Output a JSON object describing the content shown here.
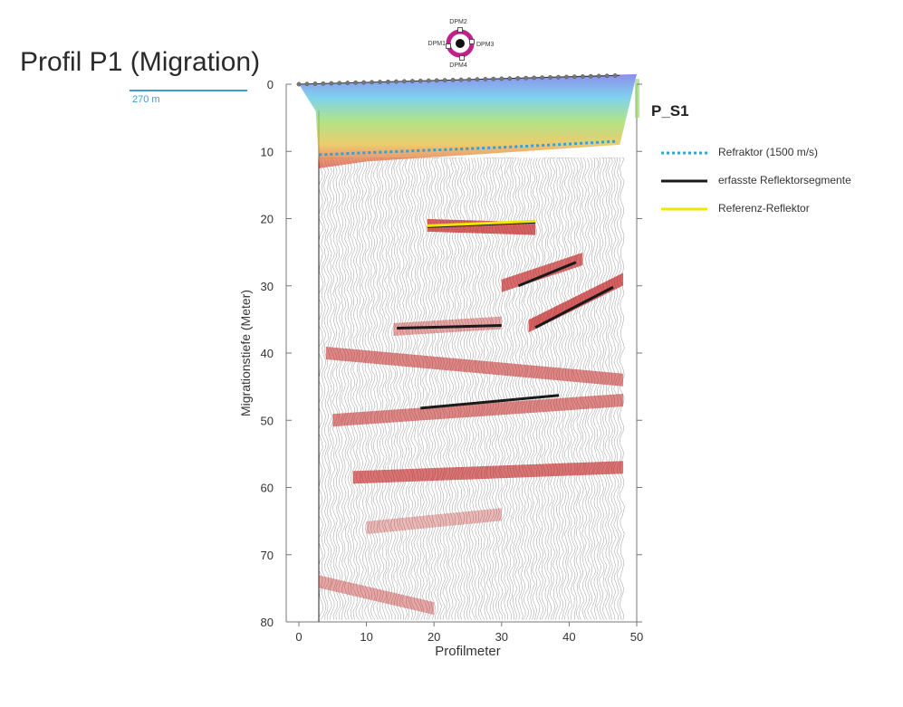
{
  "title": "Profil P1 (Migration)",
  "scale_label": "270 m",
  "profile_name": "P_S1",
  "probe": {
    "labels": [
      "DPM2",
      "DPM1",
      "DPM3",
      "DPM4"
    ]
  },
  "colors": {
    "axis": "#555555",
    "refraktor": "#3a9fd0",
    "segments": "#1a1a1a",
    "referenz": "#f2e600",
    "reflection_red": "#c01818",
    "probe_ring": "#c0208a"
  },
  "legend": [
    {
      "key": "refraktor",
      "label": "Refraktor (1500 m/s)",
      "color": "#3a9fd0",
      "style": "dotted"
    },
    {
      "key": "segments",
      "label": "erfasste Reflektorsegmente",
      "color": "#1a1a1a",
      "style": "solid"
    },
    {
      "key": "referenz",
      "label": "Referenz-Reflektor",
      "color": "#f2e600",
      "style": "solid"
    }
  ],
  "chart_data": {
    "type": "scatter",
    "title": "Profil P1 (Migration)",
    "xlabel": "Profilmeter",
    "ylabel": "Migrationstiefe (Meter)",
    "xlim": [
      0,
      50
    ],
    "ylim": [
      0,
      80
    ],
    "y_inverted": true,
    "x_ticks": [
      0,
      10,
      20,
      30,
      40,
      50
    ],
    "y_ticks": [
      0,
      10,
      20,
      30,
      40,
      50,
      60,
      70,
      80
    ],
    "series": [
      {
        "name": "Refraktor (1500 m/s)",
        "style": "dotted",
        "color": "#3a9fd0",
        "x": [
          3,
          10,
          20,
          30,
          40,
          47
        ],
        "y": [
          10.5,
          10.2,
          9.8,
          9.4,
          8.9,
          8.5
        ]
      },
      {
        "name": "Referenz-Reflektor",
        "style": "solid",
        "color": "#f2e600",
        "x": [
          19,
          35
        ],
        "y": [
          21.2,
          20.5
        ]
      }
    ],
    "segments": [
      {
        "x": [
          19,
          35
        ],
        "y": [
          21.2,
          20.5
        ]
      },
      {
        "x": [
          32.5,
          41
        ],
        "y": [
          30,
          26.5
        ]
      },
      {
        "x": [
          14.5,
          30
        ],
        "y": [
          36.3,
          35.9
        ]
      },
      {
        "x": [
          35,
          46.5
        ],
        "y": [
          36.2,
          30.2
        ]
      },
      {
        "x": [
          18,
          38.5
        ],
        "y": [
          48.2,
          46.3
        ]
      }
    ],
    "reflection_bands": [
      {
        "x": [
          19,
          35
        ],
        "y": [
          21,
          21.5
        ],
        "strength": 0.9
      },
      {
        "x": [
          30,
          42
        ],
        "y": [
          30,
          26
        ],
        "strength": 0.85
      },
      {
        "x": [
          34,
          48
        ],
        "y": [
          36,
          29
        ],
        "strength": 0.9
      },
      {
        "x": [
          14,
          30
        ],
        "y": [
          36.5,
          35.5
        ],
        "strength": 0.5
      },
      {
        "x": [
          4,
          48
        ],
        "y": [
          40,
          44
        ],
        "strength": 0.7
      },
      {
        "x": [
          5,
          48
        ],
        "y": [
          50,
          47
        ],
        "strength": 0.7
      },
      {
        "x": [
          8,
          48
        ],
        "y": [
          58.5,
          57
        ],
        "strength": 0.8
      },
      {
        "x": [
          10,
          30
        ],
        "y": [
          66,
          64
        ],
        "strength": 0.4
      },
      {
        "x": [
          3,
          20
        ],
        "y": [
          74,
          78
        ],
        "strength": 0.5
      }
    ]
  }
}
